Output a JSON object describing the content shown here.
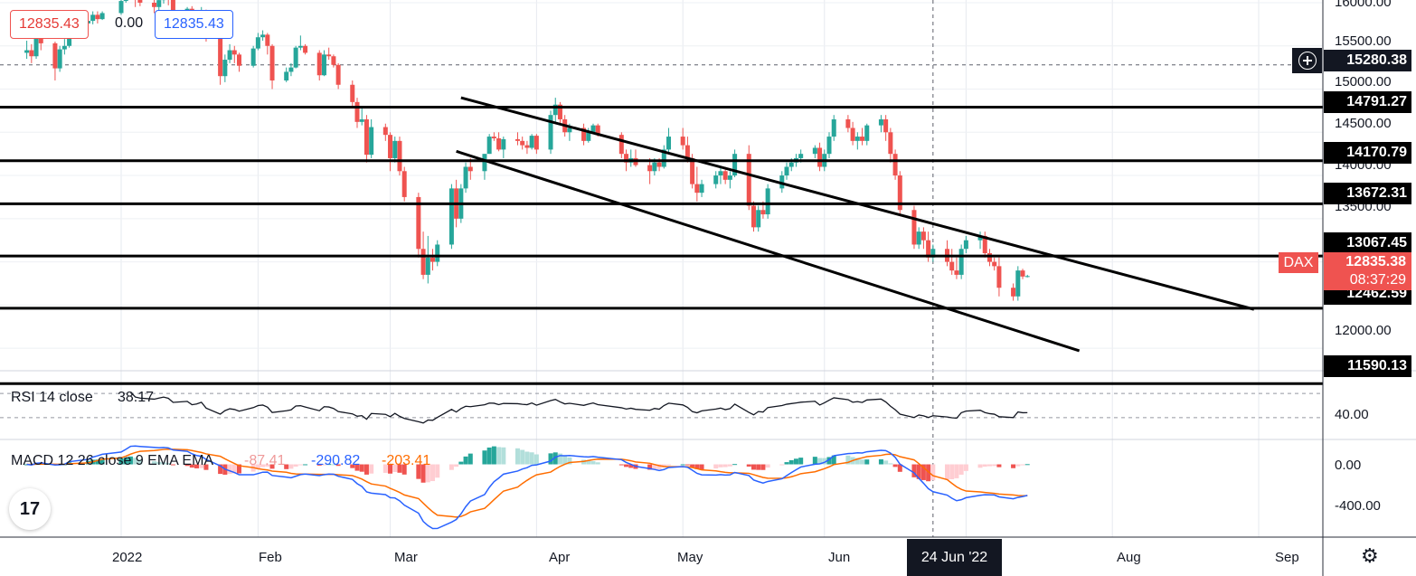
{
  "legend": {
    "bid": "12835.43",
    "spread": "0.00",
    "ask": "12835.43"
  },
  "price_axis": {
    "ticks": [
      "16000.00",
      "15500.00",
      "15000.00",
      "14500.00",
      "14000.00",
      "13500.00",
      "12000.00"
    ],
    "level_tags": [
      "15280.38",
      "14791.27",
      "14170.79",
      "13672.31",
      "13067.45",
      "12462.59",
      "11590.13"
    ],
    "last_symbol": "DAX",
    "last_price": "12835.38",
    "countdown": "08:37:29",
    "colors": {
      "last_tag": "#ef5350",
      "level_tag": "#000000",
      "crosshair_tag": "#131722"
    }
  },
  "rsi": {
    "label": "RSI 14 close",
    "value": "38.17",
    "ticks": [
      "40.00"
    ]
  },
  "macd": {
    "label": "MACD 12 26 close 9 EMA EMA",
    "hist_value": "-87.41",
    "macd_value": "-290.82",
    "signal_value": "-203.41",
    "ticks": [
      "0.00",
      "-400.00"
    ],
    "colors": {
      "macd": "#2962ff",
      "signal": "#ff6d00",
      "hist_value": "#ef9a9a"
    }
  },
  "time_axis": {
    "labels": [
      "2022",
      "Feb",
      "Mar",
      "Apr",
      "May",
      "Jun",
      "Aug",
      "Sep"
    ],
    "crosshair_date": "24 Jun '22"
  },
  "logo_text": "17",
  "chart_data": {
    "type": "candlestick",
    "symbol": "DAX",
    "colors": {
      "up": "#26a69a",
      "down": "#ef5350"
    },
    "ylim": [
      11590,
      16000
    ],
    "horizontal_levels": [
      14791.27,
      14170.79,
      13672.31,
      13067.45,
      12462.59,
      11590.13
    ],
    "crosshair_level": 15280.38,
    "channel": {
      "upper": [
        [
          "2022-03-16",
          14900
        ],
        [
          "2022-08-31",
          12450
        ]
      ],
      "lower": [
        [
          "2022-03-15",
          14280
        ],
        [
          "2022-07-25",
          11970
        ]
      ]
    },
    "candles": [
      [
        "2021-12-14",
        15420,
        15560,
        15350,
        15450
      ],
      [
        "2021-12-15",
        15450,
        15520,
        15300,
        15380
      ],
      [
        "2021-12-16",
        15380,
        15650,
        15350,
        15630
      ],
      [
        "2021-12-17",
        15630,
        15640,
        15450,
        15530
      ],
      [
        "2021-12-20",
        15530,
        15550,
        15100,
        15240
      ],
      [
        "2021-12-21",
        15240,
        15500,
        15200,
        15460
      ],
      [
        "2021-12-22",
        15460,
        15580,
        15400,
        15500
      ],
      [
        "2021-12-23",
        15500,
        15770,
        15480,
        15760
      ],
      [
        "2021-12-27",
        15760,
        15800,
        15700,
        15790
      ],
      [
        "2021-12-28",
        15790,
        15900,
        15750,
        15860
      ],
      [
        "2021-12-29",
        15860,
        15900,
        15760,
        15810
      ],
      [
        "2021-12-30",
        15810,
        15900,
        15800,
        15880
      ],
      [
        "2022-01-03",
        15880,
        16050,
        15860,
        16020
      ],
      [
        "2022-01-04",
        16020,
        16200,
        16000,
        16150
      ],
      [
        "2022-01-05",
        16150,
        16280,
        16100,
        16270
      ],
      [
        "2022-01-06",
        16270,
        16300,
        15950,
        16050
      ],
      [
        "2022-01-07",
        16050,
        16150,
        15960,
        16000
      ],
      [
        "2022-01-10",
        16000,
        16050,
        15880,
        15950
      ],
      [
        "2022-01-11",
        15950,
        16050,
        15900,
        16030
      ],
      [
        "2022-01-12",
        16030,
        16150,
        15990,
        16100
      ],
      [
        "2022-01-13",
        16100,
        16180,
        15970,
        16050
      ],
      [
        "2022-01-14",
        16050,
        16080,
        15850,
        15870
      ],
      [
        "2022-01-17",
        15870,
        15950,
        15850,
        15930
      ],
      [
        "2022-01-18",
        15930,
        15960,
        15700,
        15770
      ],
      [
        "2022-01-19",
        15770,
        15880,
        15720,
        15810
      ],
      [
        "2022-01-20",
        15810,
        15950,
        15780,
        15900
      ],
      [
        "2022-01-21",
        15900,
        15920,
        15550,
        15600
      ],
      [
        "2022-01-24",
        15600,
        15650,
        15050,
        15150
      ],
      [
        "2022-01-25",
        15150,
        15400,
        15080,
        15340
      ],
      [
        "2022-01-26",
        15340,
        15520,
        15300,
        15450
      ],
      [
        "2022-01-27",
        15450,
        15500,
        15300,
        15400
      ],
      [
        "2022-01-28",
        15400,
        15420,
        15200,
        15270
      ],
      [
        "2022-01-31",
        15270,
        15500,
        15250,
        15470
      ],
      [
        "2022-02-01",
        15470,
        15650,
        15450,
        15600
      ],
      [
        "2022-02-02",
        15600,
        15680,
        15560,
        15630
      ],
      [
        "2022-02-03",
        15630,
        15650,
        15400,
        15500
      ],
      [
        "2022-02-04",
        15500,
        15520,
        15000,
        15100
      ],
      [
        "2022-02-07",
        15100,
        15250,
        15080,
        15200
      ],
      [
        "2022-02-08",
        15200,
        15300,
        15150,
        15250
      ],
      [
        "2022-02-09",
        15250,
        15500,
        15240,
        15480
      ],
      [
        "2022-02-10",
        15480,
        15620,
        15450,
        15500
      ],
      [
        "2022-02-11",
        15500,
        15520,
        15400,
        15420
      ],
      [
        "2022-02-14",
        15420,
        15450,
        15100,
        15160
      ],
      [
        "2022-02-15",
        15160,
        15450,
        15150,
        15400
      ],
      [
        "2022-02-16",
        15400,
        15480,
        15340,
        15380
      ],
      [
        "2022-02-17",
        15380,
        15400,
        15250,
        15280
      ],
      [
        "2022-02-18",
        15280,
        15300,
        15000,
        15050
      ],
      [
        "2022-02-21",
        15050,
        15100,
        14800,
        14850
      ],
      [
        "2022-02-22",
        14850,
        14900,
        14550,
        14620
      ],
      [
        "2022-02-23",
        14620,
        14800,
        14580,
        14650
      ],
      [
        "2022-02-24",
        14650,
        14700,
        14150,
        14240
      ],
      [
        "2022-02-25",
        14240,
        14650,
        14200,
        14560
      ],
      [
        "2022-02-28",
        14560,
        14600,
        14400,
        14470
      ],
      [
        "2022-03-01",
        14470,
        14500,
        14050,
        14200
      ],
      [
        "2022-03-02",
        14200,
        14450,
        14150,
        14400
      ],
      [
        "2022-03-03",
        14400,
        14450,
        14000,
        14050
      ],
      [
        "2022-03-04",
        14050,
        14100,
        13700,
        13750
      ],
      [
        "2022-03-07",
        13750,
        13800,
        13050,
        13150
      ],
      [
        "2022-03-08",
        13150,
        13350,
        12800,
        12850
      ],
      [
        "2022-03-09",
        12850,
        13300,
        12750,
        13050
      ],
      [
        "2022-03-10",
        13050,
        13150,
        12900,
        13000
      ],
      [
        "2022-03-11",
        13000,
        13250,
        12950,
        13200
      ],
      [
        "2022-03-14",
        13200,
        13900,
        13150,
        13850
      ],
      [
        "2022-03-15",
        13850,
        13950,
        13400,
        13500
      ],
      [
        "2022-03-16",
        13500,
        13900,
        13450,
        13850
      ],
      [
        "2022-03-17",
        13850,
        14150,
        13800,
        14100
      ],
      [
        "2022-03-18",
        14100,
        14200,
        13950,
        14050
      ],
      [
        "2022-03-21",
        14050,
        14250,
        13950,
        14250
      ],
      [
        "2022-03-22",
        14250,
        14480,
        14250,
        14450
      ],
      [
        "2022-03-23",
        14450,
        14500,
        14400,
        14430
      ],
      [
        "2022-03-24",
        14430,
        14500,
        14280,
        14300
      ],
      [
        "2022-03-25",
        14300,
        14450,
        14200,
        14420
      ],
      [
        "2022-03-28",
        14420,
        14500,
        14350,
        14400
      ],
      [
        "2022-03-29",
        14400,
        14450,
        14300,
        14350
      ],
      [
        "2022-03-30",
        14350,
        14400,
        14250,
        14320
      ],
      [
        "2022-03-31",
        14320,
        14480,
        14300,
        14460
      ],
      [
        "2022-04-01",
        14460,
        14480,
        14250,
        14300
      ],
      [
        "2022-04-04",
        14300,
        14750,
        14250,
        14700
      ],
      [
        "2022-04-05",
        14700,
        14900,
        14600,
        14820
      ],
      [
        "2022-04-06",
        14820,
        14850,
        14600,
        14650
      ],
      [
        "2022-04-07",
        14650,
        14700,
        14450,
        14500
      ],
      [
        "2022-04-08",
        14500,
        14600,
        14400,
        14550
      ],
      [
        "2022-04-11",
        14550,
        14600,
        14350,
        14400
      ],
      [
        "2022-04-12",
        14400,
        14550,
        14380,
        14500
      ],
      [
        "2022-04-13",
        14500,
        14600,
        14480,
        14580
      ],
      [
        "2022-04-14",
        14580,
        14600,
        14450,
        14470
      ],
      [
        "2022-04-19",
        14470,
        14500,
        14200,
        14250
      ],
      [
        "2022-04-20",
        14250,
        14300,
        14050,
        14150
      ],
      [
        "2022-04-21",
        14150,
        14300,
        14100,
        14200
      ],
      [
        "2022-04-22",
        14200,
        14300,
        14100,
        14120
      ],
      [
        "2022-04-25",
        14120,
        14200,
        13900,
        14050
      ],
      [
        "2022-04-26",
        14050,
        14200,
        14000,
        14150
      ],
      [
        "2022-04-27",
        14150,
        14200,
        14050,
        14100
      ],
      [
        "2022-04-28",
        14100,
        14350,
        14080,
        14300
      ],
      [
        "2022-04-29",
        14300,
        14550,
        14250,
        14450
      ],
      [
        "2022-05-02",
        14450,
        14550,
        14300,
        14350
      ],
      [
        "2022-05-03",
        14350,
        14450,
        14150,
        14200
      ],
      [
        "2022-05-04",
        14200,
        14250,
        13850,
        13900
      ],
      [
        "2022-05-05",
        13900,
        14100,
        13700,
        13800
      ],
      [
        "2022-05-06",
        13800,
        13950,
        13750,
        13900
      ],
      [
        "2022-05-09",
        13900,
        14050,
        13850,
        14000
      ],
      [
        "2022-05-10",
        14000,
        14100,
        13900,
        14050
      ],
      [
        "2022-05-11",
        14050,
        14100,
        13900,
        13950
      ],
      [
        "2022-05-12",
        13950,
        14050,
        13850,
        14000
      ],
      [
        "2022-05-13",
        14000,
        14300,
        13980,
        14250
      ],
      [
        "2022-05-16",
        14250,
        14350,
        13600,
        13650
      ],
      [
        "2022-05-17",
        13650,
        13700,
        13350,
        13400
      ],
      [
        "2022-05-18",
        13400,
        13650,
        13350,
        13600
      ],
      [
        "2022-05-19",
        13600,
        13700,
        13500,
        13550
      ],
      [
        "2022-05-20",
        13550,
        13900,
        13500,
        13850
      ],
      [
        "2022-05-23",
        13850,
        14050,
        13800,
        14000
      ],
      [
        "2022-05-24",
        14000,
        14150,
        13950,
        14100
      ],
      [
        "2022-05-25",
        14100,
        14200,
        14050,
        14150
      ],
      [
        "2022-05-26",
        14150,
        14250,
        14100,
        14200
      ],
      [
        "2022-05-27",
        14200,
        14300,
        14150,
        14250
      ],
      [
        "2022-05-30",
        14250,
        14350,
        14200,
        14320
      ],
      [
        "2022-05-31",
        14320,
        14380,
        14050,
        14100
      ],
      [
        "2022-06-01",
        14100,
        14300,
        14050,
        14250
      ],
      [
        "2022-06-02",
        14250,
        14500,
        14200,
        14450
      ],
      [
        "2022-06-03",
        14450,
        14700,
        14400,
        14650
      ],
      [
        "2022-06-06",
        14650,
        14700,
        14500,
        14550
      ],
      [
        "2022-06-07",
        14550,
        14620,
        14350,
        14400
      ],
      [
        "2022-06-08",
        14400,
        14500,
        14300,
        14450
      ],
      [
        "2022-06-09",
        14450,
        14550,
        14350,
        14400
      ],
      [
        "2022-06-10",
        14400,
        14600,
        14350,
        14580
      ],
      [
        "2022-06-13",
        14580,
        14700,
        14500,
        14650
      ],
      [
        "2022-06-14",
        14650,
        14700,
        14400,
        14500
      ],
      [
        "2022-06-15",
        14500,
        14550,
        14150,
        14250
      ],
      [
        "2022-06-16",
        14250,
        14300,
        13950,
        14000
      ],
      [
        "2022-06-17",
        14000,
        14050,
        13550,
        13600
      ],
      [
        "2022-06-20",
        13600,
        13650,
        13150,
        13200
      ],
      [
        "2022-06-21",
        13200,
        13400,
        13150,
        13350
      ],
      [
        "2022-06-22",
        13350,
        13400,
        13150,
        13250
      ],
      [
        "2022-06-23",
        13250,
        13350,
        13000,
        13050
      ],
      [
        "2022-06-24",
        13050,
        13200,
        13000,
        13150
      ],
      [
        "2022-06-27",
        13150,
        13250,
        12950,
        13000
      ],
      [
        "2022-06-28",
        13000,
        13150,
        12850,
        12900
      ],
      [
        "2022-06-29",
        12900,
        13050,
        12800,
        12850
      ],
      [
        "2022-06-30",
        12850,
        13200,
        12800,
        13150
      ],
      [
        "2022-07-01",
        13150,
        13300,
        13100,
        13250
      ],
      [
        "2022-07-04",
        13250,
        13350,
        13150,
        13300
      ],
      [
        "2022-07-05",
        13300,
        13350,
        13050,
        13100
      ],
      [
        "2022-07-06",
        13100,
        13150,
        12950,
        13000
      ],
      [
        "2022-07-07",
        13000,
        13050,
        12900,
        12950
      ],
      [
        "2022-07-08",
        12950,
        13050,
        12600,
        12700
      ],
      [
        "2022-07-11",
        12700,
        12750,
        12550,
        12600
      ],
      [
        "2022-07-12",
        12600,
        12950,
        12550,
        12900
      ],
      [
        "2022-07-13",
        12900,
        12920,
        12800,
        12830
      ],
      [
        "2022-07-14",
        12830,
        12850,
        12820,
        12835
      ]
    ],
    "rsi_panel": {
      "ylim": [
        0,
        100
      ],
      "levels": [
        70,
        30
      ],
      "last": 38.17
    },
    "macd_panel": {
      "ylim": [
        -650,
        200
      ],
      "last_macd": -290.82,
      "last_signal": -203.41,
      "last_hist": -87.41
    }
  }
}
